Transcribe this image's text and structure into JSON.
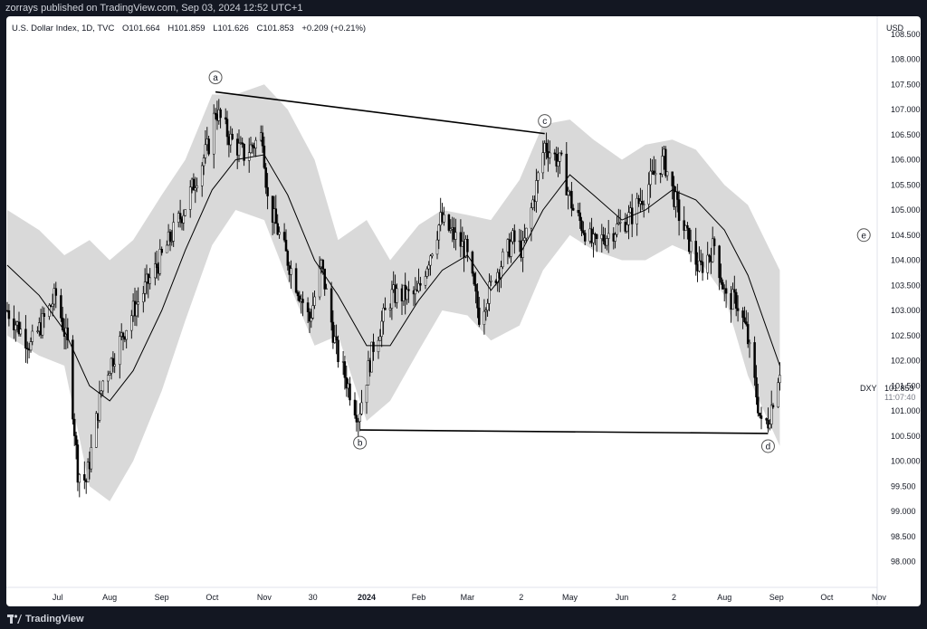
{
  "header": {
    "publisher": "zorrays published on TradingView.com, Sep 03, 2024 12:52 UTC+1"
  },
  "legend": {
    "symbol": "U.S. Dollar Index, 1D, TVC",
    "open": "O101.664",
    "high": "H101.859",
    "low": "L101.626",
    "close": "C101.853",
    "change": "+0.209 (+0.21%)"
  },
  "price_scale": {
    "currency": "USD",
    "ticker": "DXY",
    "last_price": "101.853",
    "countdown": "11:07:40",
    "ticks": [
      "108.500",
      "108.000",
      "107.500",
      "107.000",
      "106.500",
      "106.000",
      "105.500",
      "105.000",
      "104.500",
      "104.000",
      "103.500",
      "103.000",
      "102.500",
      "102.000",
      "101.500",
      "101.000",
      "100.500",
      "100.000",
      "99.500",
      "99.000",
      "98.500",
      "98.000"
    ]
  },
  "footer": {
    "brand": "TradingView"
  },
  "colors": {
    "background": "#131722",
    "panel": "#ffffff",
    "candle": "#000000",
    "band": "#d9d9d9",
    "ma": "#000000",
    "price_label": "#131722"
  },
  "chart_data": {
    "type": "line",
    "title": "U.S. Dollar Index, 1D, TVC",
    "ylabel": "USD",
    "ylim": [
      97.9,
      108.9
    ],
    "x_ticks": [
      {
        "label": "Jul",
        "date": "2023-07-01"
      },
      {
        "label": "Aug",
        "date": "2023-08-01"
      },
      {
        "label": "Sep",
        "date": "2023-09-01"
      },
      {
        "label": "Oct",
        "date": "2023-10-01"
      },
      {
        "label": "Nov",
        "date": "2023-11-01"
      },
      {
        "label": "30",
        "date": "2023-11-30"
      },
      {
        "label": "2024",
        "date": "2024-01-01"
      },
      {
        "label": "Feb",
        "date": "2024-02-01"
      },
      {
        "label": "Mar",
        "date": "2024-03-01"
      },
      {
        "label": "2",
        "date": "2024-04-02"
      },
      {
        "label": "May",
        "date": "2024-05-01"
      },
      {
        "label": "Jun",
        "date": "2024-06-01"
      },
      {
        "label": "2",
        "date": "2024-07-02"
      },
      {
        "label": "Aug",
        "date": "2024-08-01"
      },
      {
        "label": "Sep",
        "date": "2024-09-01"
      },
      {
        "label": "Oct",
        "date": "2024-10-01"
      },
      {
        "label": "Nov",
        "date": "2024-11-01"
      }
    ],
    "series": [
      {
        "name": "close",
        "points": [
          [
            "2023-06-01",
            103.0
          ],
          [
            "2023-06-15",
            102.3
          ],
          [
            "2023-06-30",
            103.3
          ],
          [
            "2023-07-07",
            102.3
          ],
          [
            "2023-07-13",
            99.8
          ],
          [
            "2023-07-18",
            99.6
          ],
          [
            "2023-07-28",
            101.6
          ],
          [
            "2023-08-15",
            103.0
          ],
          [
            "2023-08-31",
            104.0
          ],
          [
            "2023-09-14",
            105.0
          ],
          [
            "2023-09-29",
            106.3
          ],
          [
            "2023-10-03",
            107.0
          ],
          [
            "2023-10-12",
            106.4
          ],
          [
            "2023-10-20",
            106.1
          ],
          [
            "2023-10-31",
            106.5
          ],
          [
            "2023-11-03",
            105.2
          ],
          [
            "2023-11-14",
            104.1
          ],
          [
            "2023-11-28",
            102.8
          ],
          [
            "2023-12-05",
            103.9
          ],
          [
            "2023-12-14",
            102.2
          ],
          [
            "2023-12-27",
            100.9
          ],
          [
            "2024-01-05",
            102.3
          ],
          [
            "2024-01-16",
            103.3
          ],
          [
            "2024-01-31",
            103.3
          ],
          [
            "2024-02-14",
            104.8
          ],
          [
            "2024-02-29",
            104.2
          ],
          [
            "2024-03-08",
            102.9
          ],
          [
            "2024-03-19",
            103.8
          ],
          [
            "2024-03-28",
            104.4
          ],
          [
            "2024-04-03",
            104.2
          ],
          [
            "2024-04-16",
            106.3
          ],
          [
            "2024-04-26",
            105.9
          ],
          [
            "2024-05-03",
            105.0
          ],
          [
            "2024-05-15",
            104.3
          ],
          [
            "2024-05-31",
            104.7
          ],
          [
            "2024-06-07",
            104.9
          ],
          [
            "2024-06-20",
            105.7
          ],
          [
            "2024-06-26",
            106.0
          ],
          [
            "2024-07-05",
            104.9
          ],
          [
            "2024-07-17",
            103.8
          ],
          [
            "2024-07-26",
            104.3
          ],
          [
            "2024-08-02",
            103.2
          ],
          [
            "2024-08-08",
            103.2
          ],
          [
            "2024-08-14",
            102.6
          ],
          [
            "2024-08-23",
            100.7
          ],
          [
            "2024-08-27",
            100.8
          ],
          [
            "2024-09-03",
            101.853
          ]
        ]
      },
      {
        "name": "moving average",
        "points": [
          [
            "2023-06-01",
            103.9
          ],
          [
            "2023-06-20",
            103.3
          ],
          [
            "2023-07-05",
            102.6
          ],
          [
            "2023-07-20",
            101.5
          ],
          [
            "2023-08-01",
            101.2
          ],
          [
            "2023-08-15",
            101.8
          ],
          [
            "2023-09-01",
            103.0
          ],
          [
            "2023-09-15",
            104.2
          ],
          [
            "2023-10-01",
            105.4
          ],
          [
            "2023-10-15",
            106.0
          ],
          [
            "2023-11-01",
            106.1
          ],
          [
            "2023-11-15",
            105.3
          ],
          [
            "2023-12-01",
            104.0
          ],
          [
            "2023-12-15",
            103.3
          ],
          [
            "2024-01-01",
            102.3
          ],
          [
            "2024-01-15",
            102.3
          ],
          [
            "2024-02-01",
            103.2
          ],
          [
            "2024-02-15",
            103.8
          ],
          [
            "2024-03-01",
            104.1
          ],
          [
            "2024-03-15",
            103.4
          ],
          [
            "2024-04-01",
            104.1
          ],
          [
            "2024-04-15",
            105.0
          ],
          [
            "2024-05-01",
            105.7
          ],
          [
            "2024-05-15",
            105.3
          ],
          [
            "2024-06-01",
            104.8
          ],
          [
            "2024-06-15",
            105.0
          ],
          [
            "2024-07-01",
            105.4
          ],
          [
            "2024-07-15",
            105.2
          ],
          [
            "2024-08-01",
            104.6
          ],
          [
            "2024-08-15",
            103.7
          ],
          [
            "2024-09-03",
            101.9
          ]
        ]
      },
      {
        "name": "band upper",
        "points": [
          [
            "2023-06-01",
            105.0
          ],
          [
            "2023-06-20",
            104.6
          ],
          [
            "2023-07-05",
            104.1
          ],
          [
            "2023-07-20",
            104.4
          ],
          [
            "2023-08-01",
            104.0
          ],
          [
            "2023-08-15",
            104.4
          ],
          [
            "2023-09-01",
            105.3
          ],
          [
            "2023-09-15",
            106.0
          ],
          [
            "2023-10-01",
            107.3
          ],
          [
            "2023-10-15",
            107.3
          ],
          [
            "2023-11-01",
            107.5
          ],
          [
            "2023-11-15",
            107.0
          ],
          [
            "2023-12-01",
            106.0
          ],
          [
            "2023-12-15",
            104.4
          ],
          [
            "2024-01-01",
            104.8
          ],
          [
            "2024-01-15",
            104.0
          ],
          [
            "2024-02-01",
            104.7
          ],
          [
            "2024-02-15",
            105.0
          ],
          [
            "2024-03-01",
            104.9
          ],
          [
            "2024-03-15",
            104.8
          ],
          [
            "2024-04-01",
            105.6
          ],
          [
            "2024-04-15",
            106.7
          ],
          [
            "2024-05-01",
            106.8
          ],
          [
            "2024-05-15",
            106.4
          ],
          [
            "2024-06-01",
            106.0
          ],
          [
            "2024-06-15",
            106.3
          ],
          [
            "2024-07-01",
            106.4
          ],
          [
            "2024-07-15",
            106.2
          ],
          [
            "2024-08-01",
            105.5
          ],
          [
            "2024-08-15",
            105.1
          ],
          [
            "2024-09-03",
            103.8
          ]
        ]
      },
      {
        "name": "band lower",
        "points": [
          [
            "2023-06-01",
            102.5
          ],
          [
            "2023-06-20",
            102.1
          ],
          [
            "2023-07-05",
            101.9
          ],
          [
            "2023-07-20",
            99.5
          ],
          [
            "2023-08-01",
            99.2
          ],
          [
            "2023-08-15",
            100.0
          ],
          [
            "2023-09-01",
            101.4
          ],
          [
            "2023-09-15",
            102.8
          ],
          [
            "2023-10-01",
            104.3
          ],
          [
            "2023-10-15",
            105.0
          ],
          [
            "2023-11-01",
            104.8
          ],
          [
            "2023-11-15",
            103.6
          ],
          [
            "2023-12-01",
            102.3
          ],
          [
            "2023-12-15",
            102.5
          ],
          [
            "2024-01-01",
            100.8
          ],
          [
            "2024-01-15",
            101.2
          ],
          [
            "2024-02-01",
            102.2
          ],
          [
            "2024-02-15",
            103.0
          ],
          [
            "2024-03-01",
            102.9
          ],
          [
            "2024-03-15",
            102.4
          ],
          [
            "2024-04-01",
            102.7
          ],
          [
            "2024-04-15",
            103.8
          ],
          [
            "2024-05-01",
            104.5
          ],
          [
            "2024-05-15",
            104.2
          ],
          [
            "2024-06-01",
            104.0
          ],
          [
            "2024-06-15",
            104.0
          ],
          [
            "2024-07-01",
            104.3
          ],
          [
            "2024-07-15",
            104.1
          ],
          [
            "2024-08-01",
            103.3
          ],
          [
            "2024-08-15",
            101.7
          ],
          [
            "2024-09-03",
            100.3
          ]
        ]
      }
    ],
    "annotations": [
      {
        "label": "a",
        "date": "2023-10-03",
        "price": 107.35
      },
      {
        "label": "b",
        "date": "2023-12-28",
        "price": 100.62
      },
      {
        "label": "c",
        "date": "2024-04-16",
        "price": 106.52
      },
      {
        "label": "d",
        "date": "2024-08-27",
        "price": 100.55
      },
      {
        "label": "e",
        "date": "2024-10-23",
        "price": 104.5
      }
    ],
    "trendlines": [
      {
        "from": {
          "date": "2023-10-03",
          "price": 107.35
        },
        "to": {
          "date": "2024-04-16",
          "price": 106.52
        }
      },
      {
        "from": {
          "date": "2023-12-28",
          "price": 100.62
        },
        "to": {
          "date": "2024-08-27",
          "price": 100.55
        }
      }
    ]
  }
}
